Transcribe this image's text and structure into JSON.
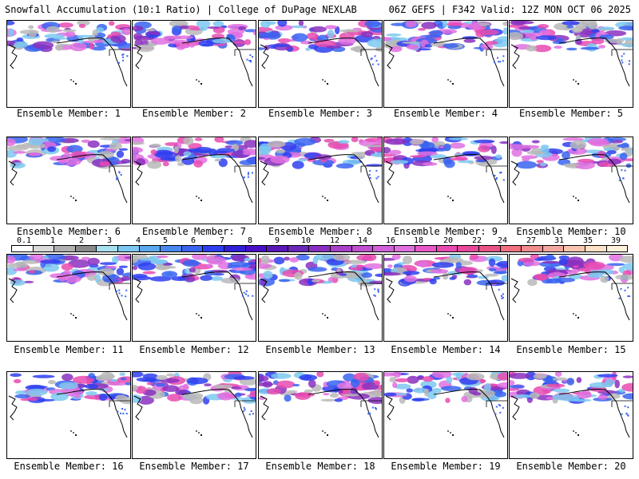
{
  "header": {
    "left": "Snowfall Accumulation (10:1 Ratio) | College of DuPage NEXLAB",
    "right": "06Z GEFS | F342 Valid: 12Z MON OCT 06 2025"
  },
  "members": [
    "Ensemble Member: 1",
    "Ensemble Member: 2",
    "Ensemble Member: 3",
    "Ensemble Member: 4",
    "Ensemble Member: 5",
    "Ensemble Member: 6",
    "Ensemble Member: 7",
    "Ensemble Member: 8",
    "Ensemble Member: 9",
    "Ensemble Member: 10",
    "Ensemble Member: 11",
    "Ensemble Member: 12",
    "Ensemble Member: 13",
    "Ensemble Member: 14",
    "Ensemble Member: 15",
    "Ensemble Member: 16",
    "Ensemble Member: 17",
    "Ensemble Member: 18",
    "Ensemble Member: 19",
    "Ensemble Member: 20"
  ],
  "colorbar": {
    "labels": [
      "0.1",
      "1",
      "2",
      "3",
      "4",
      "5",
      "6",
      "7",
      "8",
      "9",
      "10",
      "12",
      "14",
      "16",
      "18",
      "20",
      "22",
      "24",
      "27",
      "31",
      "35",
      "39"
    ],
    "colors": [
      "#ffffff",
      "#d9d9d9",
      "#b0b0b0",
      "#8a8a8a",
      "#a8e0f0",
      "#7cc8f0",
      "#5aa8ee",
      "#4a88f0",
      "#3a64f0",
      "#2f3ff0",
      "#3020d8",
      "#4a10c8",
      "#5a18b8",
      "#6a28b8",
      "#8a30c0",
      "#a840c8",
      "#c050d0",
      "#d060d8",
      "#e070e0",
      "#e858c8",
      "#e84ab0",
      "#e8489a",
      "#e85488",
      "#f07080",
      "#f08c8c",
      "#f0a8a0",
      "#f8c4b0",
      "#fce0c8",
      "#fff0dc"
    ]
  },
  "icons": [
    "north-america-coastline-map"
  ]
}
